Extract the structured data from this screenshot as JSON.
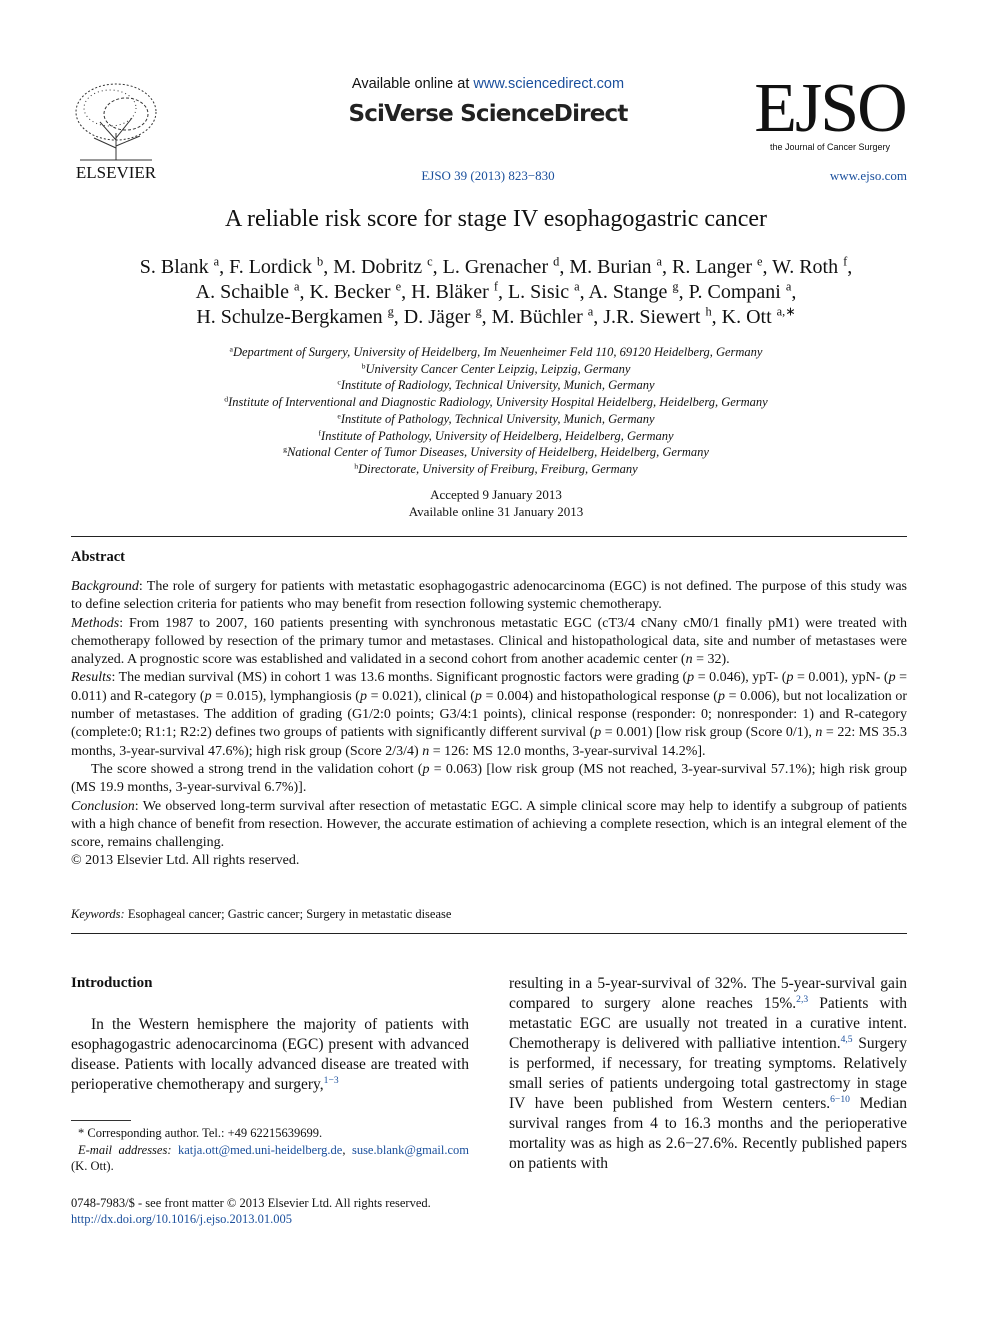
{
  "header": {
    "available": [
      {
        "plain": "Available online at "
      },
      {
        "link": "www.sciencedirect.com"
      }
    ],
    "brand": "SciVerse ScienceDirect",
    "publisher": "ELSEVIER",
    "journal_logo": "EJSO",
    "journal_name": "the Journal of Cancer Surgery",
    "citation": "EJSO 39 (2013) 823−830",
    "website": "www.ejso.com"
  },
  "article": {
    "title": "A reliable risk score for stage IV esophagogastric cancer",
    "authors": [
      [
        "S. Blank ",
        {
          "sup": "a"
        },
        ", F. Lordick ",
        {
          "sup": "b"
        },
        ", M. Dobritz ",
        {
          "sup": "c"
        },
        ", L. Grenacher ",
        {
          "sup": "d"
        },
        ", M. Burian ",
        {
          "sup": "a"
        },
        ", R. Langer ",
        {
          "sup": "e"
        },
        ", W. Roth ",
        {
          "sup": "f"
        },
        ","
      ],
      [
        "A. Schaible ",
        {
          "sup": "a"
        },
        ", K. Becker ",
        {
          "sup": "e"
        },
        ", H. Bläker ",
        {
          "sup": "f"
        },
        ", L. Sisic ",
        {
          "sup": "a"
        },
        ", A. Stange ",
        {
          "sup": "g"
        },
        ", P. Compani ",
        {
          "sup": "a"
        },
        ","
      ],
      [
        "H. Schulze-Bergkamen ",
        {
          "sup": "g"
        },
        ", D. Jäger ",
        {
          "sup": "g"
        },
        ", M. Büchler ",
        {
          "sup": "a"
        },
        ", J.R. Siewert ",
        {
          "sup": "h"
        },
        ", K. Ott ",
        {
          "sup": "a,∗"
        }
      ]
    ],
    "affiliations": [
      {
        "sup": "a",
        "text": "Department of Surgery, University of Heidelberg, Im Neuenheimer Feld 110, 69120 Heidelberg, Germany"
      },
      {
        "sup": "b",
        "text": "University Cancer Center Leipzig, Leipzig, Germany"
      },
      {
        "sup": "c",
        "text": "Institute of Radiology, Technical University, Munich, Germany"
      },
      {
        "sup": "d",
        "text": "Institute of Interventional and Diagnostic Radiology, University Hospital Heidelberg, Heidelberg, Germany"
      },
      {
        "sup": "e",
        "text": "Institute of Pathology, Technical University, Munich, Germany"
      },
      {
        "sup": "f",
        "text": "Institute of Pathology, University of Heidelberg, Heidelberg, Germany"
      },
      {
        "sup": "g",
        "text": "National Center of Tumor Diseases, University of Heidelberg, Heidelberg, Germany"
      },
      {
        "sup": "h",
        "text": "Directorate, University of Freiburg, Freiburg, Germany"
      }
    ],
    "dates": [
      "Accepted 9 January 2013",
      "Available online 31 January 2013"
    ]
  },
  "abstract": {
    "heading": "Abstract",
    "paragraphs": [
      [
        {
          "i": "Background"
        },
        ": The role of surgery for patients with metastatic esophagogastric adenocarcinoma (EGC) is not defined. The purpose of this study was to define selection criteria for patients who may benefit from resection following systemic chemotherapy."
      ],
      [
        {
          "i": "Methods"
        },
        ": From 1987 to 2007, 160 patients presenting with synchronous metastatic EGC (cT3/4 cNany cM0/1 finally pM1) were treated with chemotherapy followed by resection of the primary tumor and metastases. Clinical and histopathological data, site and number of metastases were analyzed. A prognostic score was established and validated in a second cohort from another academic center (",
        {
          "i": "n"
        },
        " = 32)."
      ],
      [
        {
          "i": "Results"
        },
        ": The median survival (MS) in cohort 1 was 13.6 months. Significant prognostic factors were grading (",
        {
          "i": "p"
        },
        " = 0.046), ypT- (",
        {
          "i": "p"
        },
        " = 0.001), ypN- (",
        {
          "i": "p"
        },
        " = 0.011) and R-category (",
        {
          "i": "p"
        },
        " = 0.015), lymphangiosis (",
        {
          "i": "p"
        },
        " = 0.021), clinical (",
        {
          "i": "p"
        },
        " = 0.004) and histopathological response (",
        {
          "i": "p"
        },
        " = 0.006), but not localization or number of metastases. The addition of grading (G1/2:0 points; G3/4:1 points), clinical response (responder: 0; nonresponder: 1) and R-category (complete:0; R1:1; R2:2) defines two groups of patients with significantly different survival (",
        {
          "i": "p"
        },
        " = 0.001) [low risk group (Score 0/1), ",
        {
          "i": "n"
        },
        " = 22: MS 35.3 months, 3-year-survival 47.6%); high risk group (Score 2/3/4) ",
        {
          "i": "n"
        },
        " = 126: MS 12.0 months, 3-year-survival 14.2%]."
      ],
      [
        "The score showed a strong trend in the validation cohort (",
        {
          "i": "p"
        },
        " = 0.063) [low risk group (MS not reached, 3-year-survival 57.1%); high risk group (MS 19.9 months, 3-year-survival 6.7%)]."
      ],
      [
        {
          "i": "Conclusion"
        },
        ": We observed long-term survival after resection of metastatic EGC. A simple clinical score may help to identify a subgroup of patients with a high chance of benefit from resection. However, the accurate estimation of achieving a complete resection, which is an integral element of the score, remains challenging."
      ]
    ],
    "copyright": "© 2013 Elsevier Ltd. All rights reserved.",
    "keywords": [
      {
        "i": "Keywords:"
      },
      " Esophageal cancer; Gastric cancer; Surgery in metastatic disease"
    ]
  },
  "introduction": {
    "heading": "Introduction",
    "left": [
      "In the Western hemisphere the majority of patients with esophagogastric adenocarcinoma (EGC) present with advanced disease. Patients with locally advanced disease are treated with perioperative chemotherapy and surgery,",
      {
        "ref": "1−3"
      }
    ],
    "right": [
      "resulting in a 5-year-survival of 32%. The 5-year-survival gain compared to surgery alone reaches 15%.",
      {
        "ref": "2,3"
      },
      " Patients with metastatic EGC are usually not treated in a curative intent. Chemotherapy is delivered with palliative intention.",
      {
        "ref": "4,5"
      },
      " Surgery is performed, if necessary, for treating symptoms. Relatively small series of patients undergoing total gastrectomy in stage IV have been published from Western centers.",
      {
        "ref": "6−10"
      },
      " Median survival ranges from 4 to 16.3 months and the perioperative mortality was as high as 2.6−27.6%. Recently published papers on patients with"
    ]
  },
  "footnotes": {
    "corresponding": "* Corresponding author. Tel.: +49 62215639699.",
    "emails": [
      {
        "i": "E-mail addresses:"
      },
      " ",
      {
        "link": "katja.ott@med.uni-heidelberg.de"
      },
      ", ",
      {
        "link": "suse.blank@gmail.com"
      },
      " (K. Ott)."
    ]
  },
  "footer": {
    "issn": "0748-7983/$ - see front matter © 2013 Elsevier Ltd. All rights reserved.",
    "doi": [
      {
        "link": "http://dx.doi.org/10.1016/j.ejso.2013.01.005"
      }
    ]
  }
}
